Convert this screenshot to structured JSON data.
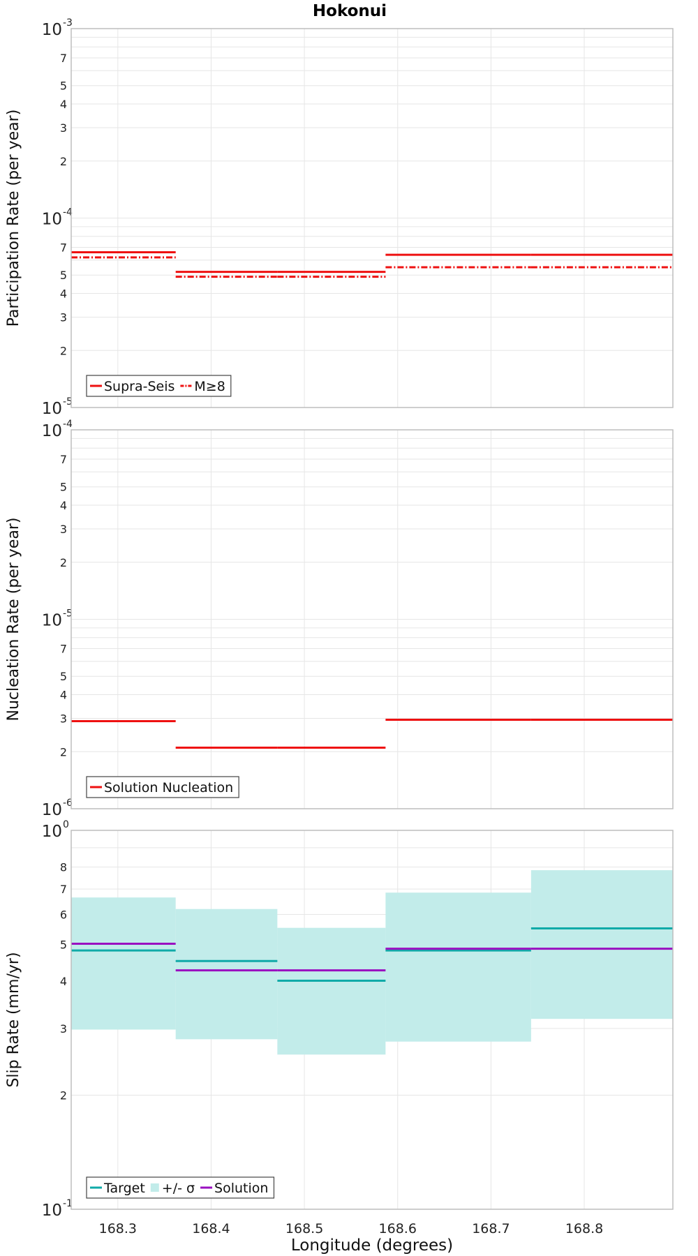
{
  "figure": {
    "title": "Hokonui",
    "xlabel": "Longitude (degrees)"
  },
  "colors": {
    "supra_seis": "#ee1111",
    "target": "#10aaa8",
    "sigma_band": "#c2ecea",
    "solution": "#9a10c0",
    "grid": "#e6e6e6",
    "frame": "#bdbdbd"
  },
  "chart_data": [
    {
      "type": "line",
      "name": "participation",
      "ylabel": "Participation Rate (per year)",
      "xlim": [
        168.25,
        168.895
      ],
      "x_ticks": [
        "168.3",
        "168.4",
        "168.5",
        "168.6",
        "168.7",
        "168.8"
      ],
      "ylim": [
        1e-05,
        0.001
      ],
      "y_scale": "log",
      "y_ticks": [
        {
          "base": "10",
          "exp": "-3"
        },
        {
          "mantissa": "7"
        },
        {
          "mantissa": "5"
        },
        {
          "mantissa": "4"
        },
        {
          "mantissa": "3"
        },
        {
          "mantissa": "2"
        },
        {
          "base": "10",
          "exp": "-4"
        },
        {
          "mantissa": "7"
        },
        {
          "mantissa": "5"
        },
        {
          "mantissa": "4"
        },
        {
          "mantissa": "3"
        },
        {
          "mantissa": "2"
        },
        {
          "base": "10",
          "exp": "-5"
        }
      ],
      "grid": true,
      "legend_position": "bottom-left",
      "series": [
        {
          "name": "Supra-Seis",
          "style": "solid",
          "color": "#ee1111",
          "segments": [
            {
              "x0": 168.25,
              "x1": 168.362,
              "y": 6.6e-05
            },
            {
              "x0": 168.362,
              "x1": 168.471,
              "y": 5.2e-05
            },
            {
              "x0": 168.471,
              "x1": 168.587,
              "y": 5.2e-05
            },
            {
              "x0": 168.587,
              "x1": 168.743,
              "y": 6.4e-05
            },
            {
              "x0": 168.743,
              "x1": 168.895,
              "y": 6.4e-05
            }
          ]
        },
        {
          "name": "M≥8",
          "style": "dashdot",
          "color": "#ee1111",
          "segments": [
            {
              "x0": 168.25,
              "x1": 168.362,
              "y": 6.2e-05
            },
            {
              "x0": 168.362,
              "x1": 168.471,
              "y": 4.9e-05
            },
            {
              "x0": 168.471,
              "x1": 168.587,
              "y": 4.9e-05
            },
            {
              "x0": 168.587,
              "x1": 168.743,
              "y": 5.5e-05
            },
            {
              "x0": 168.743,
              "x1": 168.895,
              "y": 5.5e-05
            }
          ]
        }
      ]
    },
    {
      "type": "line",
      "name": "nucleation",
      "ylabel": "Nucleation Rate (per year)",
      "xlim": [
        168.25,
        168.895
      ],
      "x_ticks": [
        "168.3",
        "168.4",
        "168.5",
        "168.6",
        "168.7",
        "168.8"
      ],
      "ylim": [
        1e-06,
        0.0001
      ],
      "y_scale": "log",
      "y_ticks": [
        {
          "base": "10",
          "exp": "-4"
        },
        {
          "mantissa": "7"
        },
        {
          "mantissa": "5"
        },
        {
          "mantissa": "4"
        },
        {
          "mantissa": "3"
        },
        {
          "mantissa": "2"
        },
        {
          "base": "10",
          "exp": "-5"
        },
        {
          "mantissa": "7"
        },
        {
          "mantissa": "5"
        },
        {
          "mantissa": "4"
        },
        {
          "mantissa": "3"
        },
        {
          "mantissa": "2"
        },
        {
          "base": "10",
          "exp": "-6"
        }
      ],
      "grid": true,
      "legend_position": "bottom-left",
      "series": [
        {
          "name": "Solution Nucleation",
          "style": "solid",
          "color": "#ee1111",
          "segments": [
            {
              "x0": 168.25,
              "x1": 168.362,
              "y": 2.9e-06
            },
            {
              "x0": 168.362,
              "x1": 168.471,
              "y": 2.1e-06
            },
            {
              "x0": 168.471,
              "x1": 168.587,
              "y": 2.1e-06
            },
            {
              "x0": 168.587,
              "x1": 168.743,
              "y": 2.95e-06
            },
            {
              "x0": 168.743,
              "x1": 168.895,
              "y": 2.95e-06
            }
          ]
        }
      ]
    },
    {
      "type": "line",
      "name": "slip",
      "ylabel": "Slip Rate (mm/yr)",
      "xlim": [
        168.25,
        168.895
      ],
      "x_ticks": [
        "168.3",
        "168.4",
        "168.5",
        "168.6",
        "168.7",
        "168.8"
      ],
      "ylim": [
        0.1,
        1
      ],
      "y_scale": "log",
      "y_ticks": [
        {
          "base": "10",
          "exp": "0"
        },
        {
          "mantissa": "8"
        },
        {
          "mantissa": "7"
        },
        {
          "mantissa": "6"
        },
        {
          "mantissa": "5"
        },
        {
          "mantissa": "4"
        },
        {
          "mantissa": "3"
        },
        {
          "mantissa": "2"
        },
        {
          "base": "10",
          "exp": "-1"
        }
      ],
      "grid": true,
      "legend_position": "bottom-left",
      "series": [
        {
          "name": "+/- σ",
          "style": "band",
          "color": "#c2ecea",
          "segments": [
            {
              "x0": 168.25,
              "x1": 168.362,
              "lo": 0.298,
              "hi": 0.665
            },
            {
              "x0": 168.362,
              "x1": 168.471,
              "lo": 0.281,
              "hi": 0.62
            },
            {
              "x0": 168.471,
              "x1": 168.587,
              "lo": 0.256,
              "hi": 0.553
            },
            {
              "x0": 168.587,
              "x1": 168.743,
              "lo": 0.277,
              "hi": 0.685
            },
            {
              "x0": 168.743,
              "x1": 168.895,
              "lo": 0.318,
              "hi": 0.785
            }
          ]
        },
        {
          "name": "Target",
          "style": "solid",
          "color": "#10aaa8",
          "segments": [
            {
              "x0": 168.25,
              "x1": 168.362,
              "y": 0.482
            },
            {
              "x0": 168.362,
              "x1": 168.471,
              "y": 0.452
            },
            {
              "x0": 168.471,
              "x1": 168.587,
              "y": 0.401
            },
            {
              "x0": 168.587,
              "x1": 168.743,
              "y": 0.482
            },
            {
              "x0": 168.743,
              "x1": 168.895,
              "y": 0.551
            }
          ]
        },
        {
          "name": "Solution",
          "style": "solid",
          "color": "#9a10c0",
          "segments": [
            {
              "x0": 168.25,
              "x1": 168.362,
              "y": 0.502
            },
            {
              "x0": 168.362,
              "x1": 168.471,
              "y": 0.427
            },
            {
              "x0": 168.471,
              "x1": 168.587,
              "y": 0.427
            },
            {
              "x0": 168.587,
              "x1": 168.743,
              "y": 0.487
            },
            {
              "x0": 168.743,
              "x1": 168.895,
              "y": 0.487
            }
          ]
        }
      ],
      "legend_order": [
        "Target",
        "+/- σ",
        "Solution"
      ]
    }
  ]
}
